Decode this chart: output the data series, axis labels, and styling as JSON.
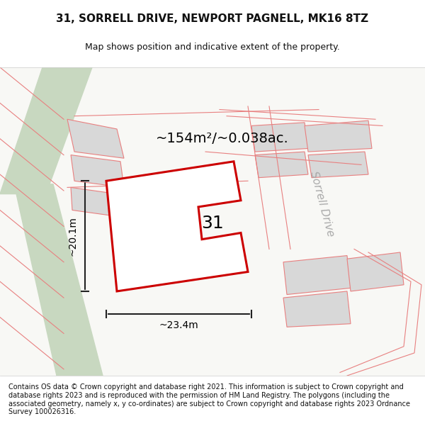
{
  "title": "31, SORRELL DRIVE, NEWPORT PAGNELL, MK16 8TZ",
  "subtitle": "Map shows position and indicative extent of the property.",
  "area_text": "~154m²/~0.038ac.",
  "width_text": "~23.4m",
  "height_text": "~20.1m",
  "label_31": "31",
  "street_label": "Sorrell Drive",
  "copyright_text": "Contains OS data © Crown copyright and database right 2021. This information is subject to Crown copyright and database rights 2023 and is reproduced with the permission of HM Land Registry. The polygons (including the associated geometry, namely x, y co-ordinates) are subject to Crown copyright and database rights 2023 Ordnance Survey 100026316.",
  "bg_color": "#f5f5f0",
  "map_bg": "#f8f8f5",
  "road_color": "#e8d8c8",
  "pink_line_color": "#e88080",
  "red_poly_color": "#cc0000",
  "gray_poly_color": "#d8d8d8",
  "green_area_color": "#c8d8c0",
  "title_color": "#111111",
  "street_label_color": "#aaaaaa",
  "dim_color": "#222222",
  "copyright_color": "#111111",
  "figsize": [
    6.0,
    6.25
  ],
  "dpi": 100
}
